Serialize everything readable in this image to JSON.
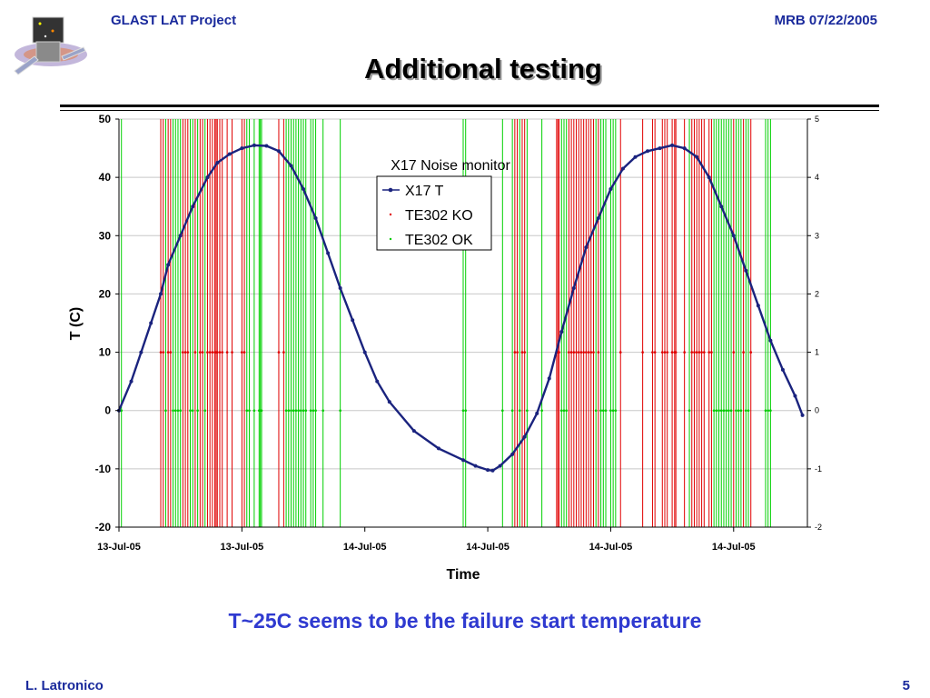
{
  "header": {
    "project": "GLAST LAT Project",
    "review": "MRB 07/22/2005"
  },
  "slide": {
    "title": "Additional testing",
    "conclusion": "T~25C seems to be the failure start temperature"
  },
  "footer": {
    "author": "L. Latronico",
    "page": "5"
  },
  "colors": {
    "accent": "#1a2a9c",
    "temperature": "#1a237e",
    "ko": "#e00000",
    "ok": "#00cc00",
    "conclusion": "#2f3ad0"
  },
  "chart_data": {
    "type": "line",
    "title": "",
    "xlabel": "Time",
    "ylabel": "T (C)",
    "ylim": [
      -20,
      50
    ],
    "y2lim": [
      -2,
      5
    ],
    "xlim": [
      0,
      28
    ],
    "x_unit": "hours from start of record",
    "x_tick_positions": [
      0,
      5,
      10,
      15,
      20,
      25
    ],
    "x_tick_labels": [
      "13-Jul-05",
      "13-Jul-05",
      "14-Jul-05",
      "14-Jul-05",
      "14-Jul-05",
      "14-Jul-05"
    ],
    "y_ticks": [
      -20,
      -10,
      0,
      10,
      20,
      30,
      40,
      50
    ],
    "y2_ticks": [
      -2,
      -1,
      0,
      1,
      2,
      3,
      4,
      5
    ],
    "grid": "horizontal",
    "legend": {
      "title": "X17 Noise monitor",
      "placement": "top-center",
      "entries": [
        "X17 T",
        "TE302 KO",
        "TE302 OK"
      ]
    },
    "series": [
      {
        "name": "X17 T",
        "axis": "left",
        "style": "line-with-markers",
        "points": [
          [
            0.0,
            0
          ],
          [
            0.5,
            5
          ],
          [
            0.9,
            10
          ],
          [
            1.3,
            15
          ],
          [
            1.7,
            20
          ],
          [
            2.0,
            25
          ],
          [
            2.5,
            30
          ],
          [
            3.0,
            35
          ],
          [
            3.6,
            40
          ],
          [
            4.0,
            42.5
          ],
          [
            4.5,
            44
          ],
          [
            5.0,
            45
          ],
          [
            5.5,
            45.5
          ],
          [
            6.0,
            45.4
          ],
          [
            6.5,
            44.5
          ],
          [
            7.0,
            42
          ],
          [
            7.5,
            38
          ],
          [
            8.0,
            33
          ],
          [
            8.5,
            27
          ],
          [
            9.0,
            21
          ],
          [
            9.5,
            15.5
          ],
          [
            10.0,
            10
          ],
          [
            10.5,
            5
          ],
          [
            11.0,
            1.5
          ],
          [
            12.0,
            -3.5
          ],
          [
            13.0,
            -6.5
          ],
          [
            14.0,
            -8.5
          ],
          [
            14.5,
            -9.5
          ],
          [
            15.0,
            -10.2
          ],
          [
            15.2,
            -10.3
          ],
          [
            15.5,
            -9.5
          ],
          [
            16.0,
            -7.5
          ],
          [
            16.5,
            -4.5
          ],
          [
            17.0,
            -0.5
          ],
          [
            17.5,
            5.5
          ],
          [
            18.0,
            13.5
          ],
          [
            18.5,
            21
          ],
          [
            19.0,
            28
          ],
          [
            19.5,
            33
          ],
          [
            20.0,
            38
          ],
          [
            20.5,
            41.5
          ],
          [
            21.0,
            43.5
          ],
          [
            21.5,
            44.5
          ],
          [
            22.0,
            45
          ],
          [
            22.5,
            45.5
          ],
          [
            23.0,
            45
          ],
          [
            23.5,
            43.5
          ],
          [
            24.0,
            40
          ],
          [
            24.5,
            35
          ],
          [
            25.0,
            30
          ],
          [
            25.5,
            24
          ],
          [
            26.0,
            18
          ],
          [
            26.5,
            12
          ],
          [
            27.0,
            7
          ],
          [
            27.5,
            2.5
          ],
          [
            27.8,
            -0.8
          ]
        ]
      },
      {
        "name": "TE302 KO",
        "axis": "right",
        "value": 1,
        "style": "points-with-drop-lines",
        "x": [
          1.7,
          1.8,
          2.0,
          2.1,
          2.6,
          2.7,
          2.8,
          3.1,
          3.3,
          3.4,
          3.6,
          3.7,
          3.8,
          3.9,
          3.95,
          4.0,
          4.1,
          4.2,
          4.4,
          4.6,
          5.0,
          5.1,
          6.5,
          6.7,
          16.1,
          16.2,
          16.4,
          16.5,
          17.8,
          17.85,
          17.9,
          18.3,
          18.4,
          18.5,
          18.6,
          18.7,
          18.8,
          18.9,
          19.0,
          19.1,
          19.2,
          19.3,
          19.5,
          20.4,
          21.3,
          21.7,
          21.8,
          22.1,
          22.2,
          22.3,
          22.5,
          22.6,
          22.65,
          23.0,
          23.3,
          23.4,
          23.5,
          23.6,
          23.7,
          23.8,
          24.0,
          24.1,
          25.0,
          25.4,
          25.7
        ]
      },
      {
        "name": "TE302 OK",
        "axis": "right",
        "value": 0,
        "style": "points-with-drop-lines",
        "x": [
          0.0,
          0.1,
          1.9,
          2.2,
          2.3,
          2.4,
          2.5,
          2.9,
          3.0,
          3.2,
          3.5,
          5.2,
          5.3,
          5.5,
          5.7,
          5.75,
          5.8,
          6.8,
          6.9,
          7.0,
          7.1,
          7.2,
          7.3,
          7.4,
          7.5,
          7.6,
          7.8,
          7.9,
          8.0,
          8.3,
          9.0,
          14.0,
          14.1,
          15.6,
          16.0,
          16.3,
          16.6,
          17.2,
          18.0,
          18.1,
          18.2,
          19.4,
          19.6,
          19.7,
          19.8,
          20.0,
          20.1,
          20.2,
          23.2,
          24.2,
          24.3,
          24.4,
          24.5,
          24.6,
          24.7,
          24.8,
          24.9,
          25.1,
          25.2,
          25.3,
          25.5,
          25.6,
          26.3,
          26.4,
          26.5
        ]
      }
    ]
  }
}
